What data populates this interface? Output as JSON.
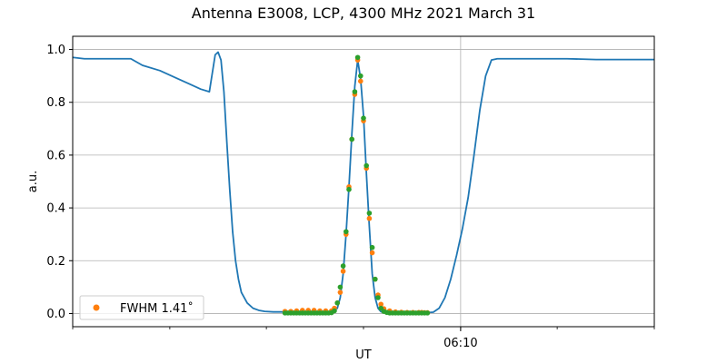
{
  "chart_data": {
    "type": "line",
    "title": "Antenna E3008, LCP, 4300 MHz 2021 March 31",
    "xlabel": "UT",
    "ylabel": "a.u.",
    "x_tick_labels": [
      {
        "x": 0.667,
        "label": "06:10"
      }
    ],
    "x_minor_ticks": [
      0.0,
      0.167,
      0.333,
      0.5,
      0.667,
      0.833,
      1.0
    ],
    "xlim": [
      0,
      1
    ],
    "ylim": [
      -0.05,
      1.05
    ],
    "y_ticks": [
      0.0,
      0.2,
      0.4,
      0.6,
      0.8,
      1.0
    ],
    "y_tick_labels": [
      "0.0",
      "0.2",
      "0.4",
      "0.6",
      "0.8",
      "1.0"
    ],
    "grid": "horizontal lines plus one vertical line at 06:10",
    "legend": {
      "placement": "lower-left",
      "entries": [
        "FWHM 1.41$^\\circ$"
      ],
      "label_text": "FWHM 1.41˚"
    },
    "colors": {
      "line": "#1f77b4",
      "fit": "#ff7f0e",
      "points": "#2ca02c",
      "grid": "#b0b0b0"
    },
    "series": [
      {
        "kind": "line",
        "x": [
          0.0,
          0.02,
          0.05,
          0.08,
          0.1,
          0.12,
          0.15,
          0.18,
          0.2,
          0.22,
          0.235,
          0.245,
          0.25,
          0.255,
          0.26,
          0.265,
          0.27,
          0.275,
          0.28,
          0.285,
          0.29,
          0.3,
          0.31,
          0.32,
          0.33,
          0.345,
          0.36,
          0.38,
          0.4,
          0.42,
          0.44,
          0.45,
          0.455,
          0.46,
          0.465,
          0.47,
          0.475,
          0.48,
          0.485,
          0.49,
          0.495,
          0.5,
          0.505,
          0.51,
          0.515,
          0.52,
          0.525,
          0.53,
          0.535,
          0.54,
          0.55,
          0.56,
          0.58,
          0.6,
          0.62,
          0.63,
          0.64,
          0.65,
          0.66,
          0.67,
          0.68,
          0.69,
          0.7,
          0.71,
          0.72,
          0.73,
          0.75,
          0.8,
          0.85,
          0.9,
          0.95,
          1.0
        ],
        "y": [
          0.97,
          0.965,
          0.965,
          0.965,
          0.965,
          0.94,
          0.92,
          0.89,
          0.87,
          0.85,
          0.84,
          0.98,
          0.99,
          0.96,
          0.84,
          0.65,
          0.47,
          0.31,
          0.2,
          0.13,
          0.08,
          0.04,
          0.02,
          0.012,
          0.008,
          0.006,
          0.006,
          0.006,
          0.006,
          0.006,
          0.007,
          0.01,
          0.02,
          0.06,
          0.15,
          0.3,
          0.48,
          0.68,
          0.86,
          0.96,
          0.89,
          0.75,
          0.53,
          0.33,
          0.15,
          0.06,
          0.02,
          0.007,
          0.003,
          0.002,
          0.002,
          0.002,
          0.002,
          0.002,
          0.005,
          0.02,
          0.06,
          0.13,
          0.22,
          0.32,
          0.44,
          0.6,
          0.77,
          0.9,
          0.96,
          0.965,
          0.965,
          0.965,
          0.965,
          0.962,
          0.962,
          0.962
        ]
      },
      {
        "kind": "scatter",
        "name": "FWHM 1.41$^\\circ$",
        "x": [
          0.365,
          0.375,
          0.385,
          0.395,
          0.405,
          0.415,
          0.425,
          0.435,
          0.445,
          0.45,
          0.455,
          0.46,
          0.465,
          0.47,
          0.475,
          0.48,
          0.485,
          0.49,
          0.495,
          0.5,
          0.505,
          0.51,
          0.515,
          0.52,
          0.525,
          0.53,
          0.535,
          0.545,
          0.555,
          0.565,
          0.575,
          0.585,
          0.595,
          0.6,
          0.605,
          0.61
        ],
        "y": [
          0.008,
          0.008,
          0.01,
          0.012,
          0.012,
          0.012,
          0.01,
          0.01,
          0.01,
          0.02,
          0.04,
          0.08,
          0.16,
          0.3,
          0.48,
          0.66,
          0.83,
          0.96,
          0.88,
          0.73,
          0.55,
          0.36,
          0.23,
          0.13,
          0.07,
          0.035,
          0.018,
          0.01,
          0.006,
          0.005,
          0.004,
          0.004,
          0.004,
          0.004,
          0.003,
          0.003
        ]
      },
      {
        "kind": "scatter",
        "x": [
          0.365,
          0.37,
          0.375,
          0.38,
          0.385,
          0.39,
          0.395,
          0.4,
          0.405,
          0.41,
          0.415,
          0.42,
          0.425,
          0.43,
          0.435,
          0.44,
          0.445,
          0.45,
          0.455,
          0.46,
          0.465,
          0.47,
          0.475,
          0.48,
          0.485,
          0.49,
          0.495,
          0.5,
          0.505,
          0.51,
          0.515,
          0.52,
          0.525,
          0.53,
          0.535,
          0.54,
          0.545,
          0.55,
          0.555,
          0.56,
          0.565,
          0.57,
          0.575,
          0.58,
          0.585,
          0.59,
          0.595,
          0.6,
          0.605,
          0.61
        ],
        "y": [
          0.002,
          0.002,
          0.002,
          0.002,
          0.002,
          0.002,
          0.002,
          0.002,
          0.002,
          0.002,
          0.002,
          0.002,
          0.002,
          0.002,
          0.002,
          0.002,
          0.003,
          0.01,
          0.04,
          0.1,
          0.18,
          0.31,
          0.47,
          0.66,
          0.84,
          0.97,
          0.9,
          0.74,
          0.56,
          0.38,
          0.25,
          0.13,
          0.06,
          0.02,
          0.008,
          0.004,
          0.002,
          0.002,
          0.002,
          0.002,
          0.002,
          0.002,
          0.002,
          0.002,
          0.002,
          0.002,
          0.002,
          0.002,
          0.002,
          0.002
        ]
      }
    ]
  }
}
